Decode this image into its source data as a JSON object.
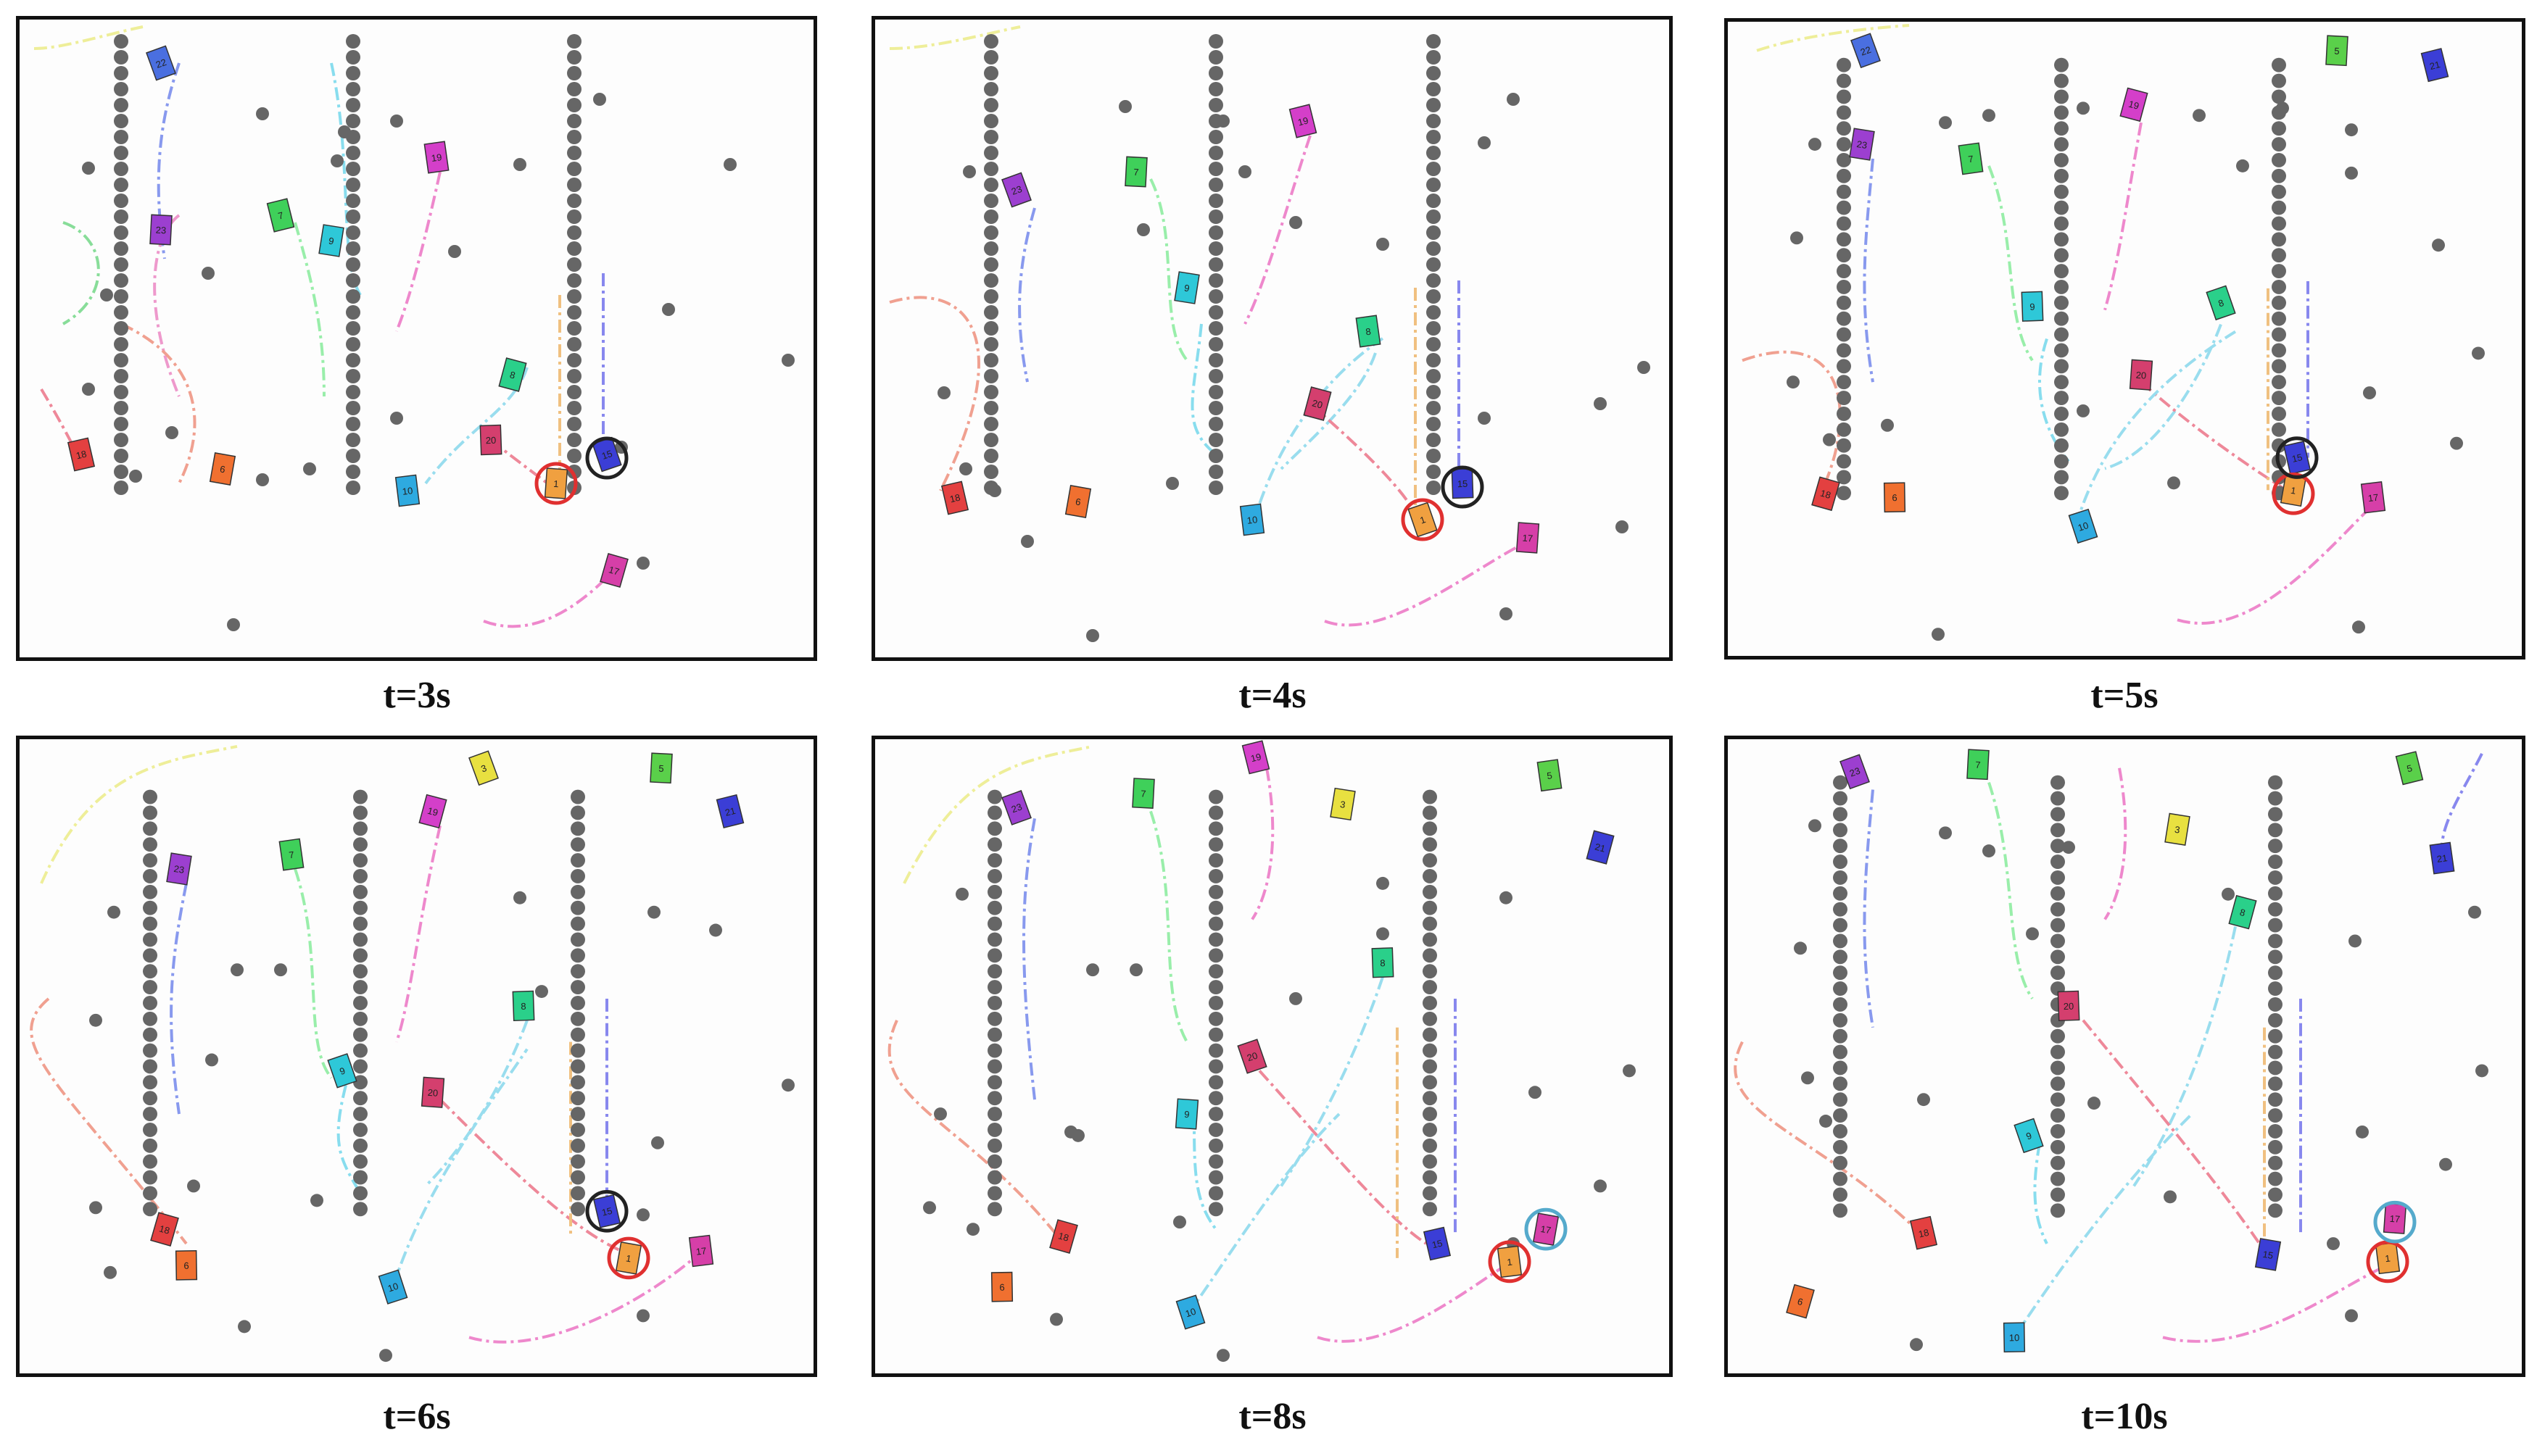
{
  "figure": {
    "panels": [
      {
        "caption": "t=3s",
        "vehicles": [
          {
            "id": "22",
            "color": "#4a6fe0"
          },
          {
            "id": "23",
            "color": "#9c3fd0"
          },
          {
            "id": "7",
            "color": "#3fd05a"
          },
          {
            "id": "9",
            "color": "#2ec8d8"
          },
          {
            "id": "19",
            "color": "#d43fc9"
          },
          {
            "id": "8",
            "color": "#2ad08a"
          },
          {
            "id": "20",
            "color": "#d43f6e"
          },
          {
            "id": "15",
            "color": "#3b3ed6"
          },
          {
            "id": "1",
            "color": "#f0a040"
          },
          {
            "id": "18",
            "color": "#e34040"
          },
          {
            "id": "6",
            "color": "#f07030"
          },
          {
            "id": "10",
            "color": "#2eaae0"
          },
          {
            "id": "17",
            "color": "#d63fa8"
          }
        ]
      },
      {
        "caption": "t=4s",
        "vehicles": [
          {
            "id": "23",
            "color": "#9c3fd0"
          },
          {
            "id": "7",
            "color": "#3fd05a"
          },
          {
            "id": "19",
            "color": "#d43fc9"
          },
          {
            "id": "9",
            "color": "#2ec8d8"
          },
          {
            "id": "8",
            "color": "#2ad08a"
          },
          {
            "id": "20",
            "color": "#d43f6e"
          },
          {
            "id": "15",
            "color": "#3b3ed6"
          },
          {
            "id": "1",
            "color": "#f0a040"
          },
          {
            "id": "17",
            "color": "#d63fa8"
          },
          {
            "id": "18",
            "color": "#e34040"
          },
          {
            "id": "6",
            "color": "#f07030"
          },
          {
            "id": "10",
            "color": "#2eaae0"
          }
        ]
      },
      {
        "caption": "t=5s",
        "vehicles": [
          {
            "id": "22",
            "color": "#4a6fe0"
          },
          {
            "id": "5",
            "color": "#5ad04a"
          },
          {
            "id": "21",
            "color": "#3b3ed6"
          },
          {
            "id": "23",
            "color": "#9c3fd0"
          },
          {
            "id": "7",
            "color": "#3fd05a"
          },
          {
            "id": "19",
            "color": "#d43fc9"
          },
          {
            "id": "9",
            "color": "#2ec8d8"
          },
          {
            "id": "8",
            "color": "#2ad08a"
          },
          {
            "id": "20",
            "color": "#d43f6e"
          },
          {
            "id": "15",
            "color": "#3b3ed6"
          },
          {
            "id": "1",
            "color": "#f0a040"
          },
          {
            "id": "17",
            "color": "#d63fa8"
          },
          {
            "id": "18",
            "color": "#e34040"
          },
          {
            "id": "6",
            "color": "#f07030"
          },
          {
            "id": "10",
            "color": "#2eaae0"
          }
        ]
      },
      {
        "caption": "t=6s",
        "vehicles": [
          {
            "id": "3",
            "color": "#e8e040"
          },
          {
            "id": "5",
            "color": "#5ad04a"
          },
          {
            "id": "21",
            "color": "#3b3ed6"
          },
          {
            "id": "23",
            "color": "#9c3fd0"
          },
          {
            "id": "7",
            "color": "#3fd05a"
          },
          {
            "id": "19",
            "color": "#d43fc9"
          },
          {
            "id": "8",
            "color": "#2ad08a"
          },
          {
            "id": "9",
            "color": "#2ec8d8"
          },
          {
            "id": "20",
            "color": "#d43f6e"
          },
          {
            "id": "15",
            "color": "#3b3ed6"
          },
          {
            "id": "1",
            "color": "#f0a040"
          },
          {
            "id": "17",
            "color": "#d63fa8"
          },
          {
            "id": "18",
            "color": "#e34040"
          },
          {
            "id": "6",
            "color": "#f07030"
          },
          {
            "id": "10",
            "color": "#2eaae0"
          }
        ]
      },
      {
        "caption": "t=8s",
        "vehicles": [
          {
            "id": "23",
            "color": "#9c3fd0"
          },
          {
            "id": "7",
            "color": "#3fd05a"
          },
          {
            "id": "19",
            "color": "#d43fc9"
          },
          {
            "id": "3",
            "color": "#e8e040"
          },
          {
            "id": "5",
            "color": "#5ad04a"
          },
          {
            "id": "21",
            "color": "#3b3ed6"
          },
          {
            "id": "8",
            "color": "#2ad08a"
          },
          {
            "id": "20",
            "color": "#d43f6e"
          },
          {
            "id": "9",
            "color": "#2ec8d8"
          },
          {
            "id": "15",
            "color": "#3b3ed6"
          },
          {
            "id": "17",
            "color": "#d63fa8"
          },
          {
            "id": "1",
            "color": "#f0a040"
          },
          {
            "id": "18",
            "color": "#e34040"
          },
          {
            "id": "6",
            "color": "#f07030"
          },
          {
            "id": "10",
            "color": "#2eaae0"
          }
        ]
      },
      {
        "caption": "t=10s",
        "vehicles": [
          {
            "id": "23",
            "color": "#9c3fd0"
          },
          {
            "id": "7",
            "color": "#3fd05a"
          },
          {
            "id": "5",
            "color": "#5ad04a"
          },
          {
            "id": "3",
            "color": "#e8e040"
          },
          {
            "id": "21",
            "color": "#3b3ed6"
          },
          {
            "id": "8",
            "color": "#2ad08a"
          },
          {
            "id": "20",
            "color": "#d43f6e"
          },
          {
            "id": "9",
            "color": "#2ec8d8"
          },
          {
            "id": "17",
            "color": "#d63fa8"
          },
          {
            "id": "18",
            "color": "#e34040"
          },
          {
            "id": "15",
            "color": "#3b3ed6"
          },
          {
            "id": "1",
            "color": "#f0a040"
          },
          {
            "id": "6",
            "color": "#f07030"
          },
          {
            "id": "10",
            "color": "#2eaae0"
          }
        ]
      }
    ]
  }
}
